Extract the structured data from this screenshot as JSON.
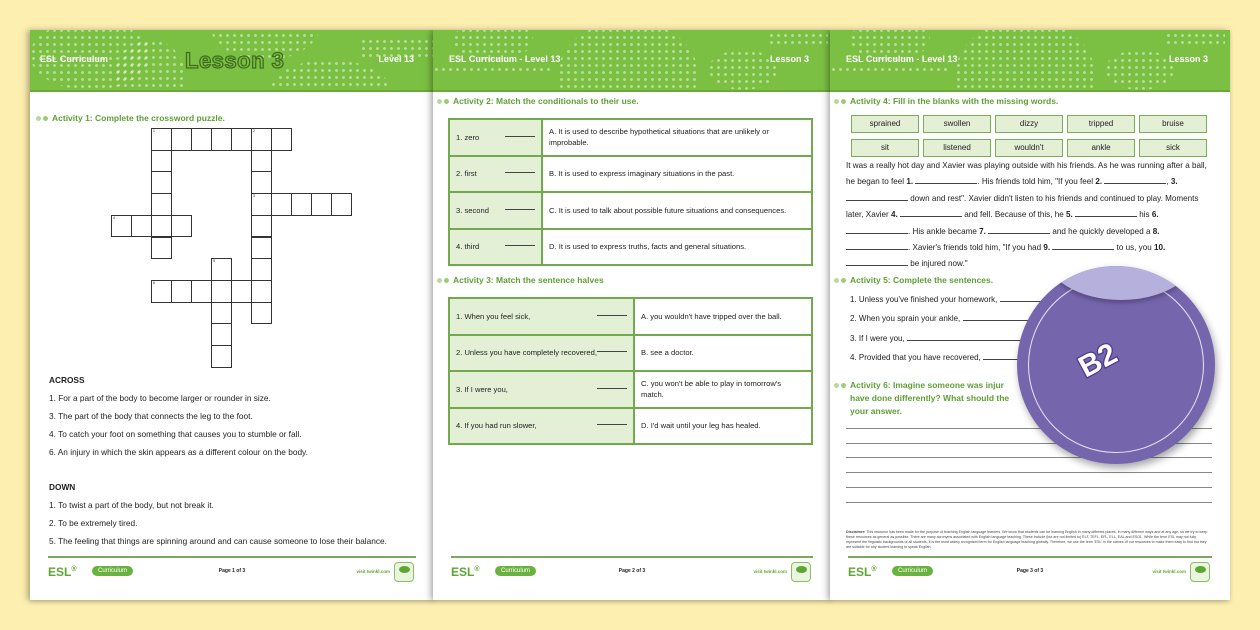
{
  "colors": {
    "background": "#fcefb0",
    "header_green": "#7cc043",
    "activity_green": "#5f9f36",
    "cell_green": "#e3f0d5",
    "sticker_purple": "#7565ad"
  },
  "page1": {
    "header": {
      "left": "ESL Curriculum",
      "title": "Lesson 3",
      "right": "Level 13"
    },
    "activity_title": "Activity 1: Complete the crossword puzzle.",
    "across_heading": "ACROSS",
    "across": [
      "1. For a part of the body to become larger or rounder in size.",
      "3. The part of the body that connects the leg to the foot.",
      "4. To catch your foot on something that causes you to stumble or fall.",
      "6. An injury in which the skin appears as a different colour on the body."
    ],
    "down_heading": "DOWN",
    "down": [
      "1. To twist a part of the body, but not break it.",
      "2. To be extremely tired.",
      "5. The feeling that things are spinning around and can cause someone to lose their balance."
    ],
    "crossword_numbers": [
      "1",
      "2",
      "3",
      "4",
      "5",
      "6"
    ],
    "footer": {
      "brand": "ESL",
      "pill": "Curriculum",
      "page": "Page 1 of 3",
      "site": "visit twinkl.com"
    }
  },
  "page2": {
    "header": {
      "left": "ESL Curriculum - Level 13",
      "right": "Lesson 3"
    },
    "activity2_title": "Activity 2: Match the conditionals to their use.",
    "activity2_rows": [
      {
        "left": "1.  zero",
        "right": "A. It is used to describe hypothetical situations that are unlikely or improbable."
      },
      {
        "left": "2.  first",
        "right": "B. It is used to express imaginary situations in the past."
      },
      {
        "left": "3.  second",
        "right": "C. It is used to talk about possible future situations and consequences."
      },
      {
        "left": "4.  third",
        "right": "D. It is used to express truths, facts and general situations."
      }
    ],
    "activity3_title": "Activity 3: Match the sentence halves",
    "activity3_rows": [
      {
        "left": "1.  When you feel sick,",
        "right": "A. you wouldn't have tripped over the ball."
      },
      {
        "left": "2.  Unless you have completely recovered,",
        "right": "B. see a doctor."
      },
      {
        "left": "3.  If I were you,",
        "right": "C. you won't be able to play in tomorrow's match."
      },
      {
        "left": "4.  If you had run slower,",
        "right": "D. I'd wait until your leg has healed."
      }
    ],
    "footer": {
      "brand": "ESL",
      "pill": "Curriculum",
      "page": "Page 2 of 3",
      "site": "visit twinkl.com"
    }
  },
  "page3": {
    "header": {
      "left": "ESL Curriculum - Level 13",
      "right": "Lesson 3"
    },
    "activity4_title": "Activity 4: Fill in the blanks with the missing words.",
    "word_bank": [
      "sprained",
      "swollen",
      "dizzy",
      "tripped",
      "bruise",
      "sit",
      "listened",
      "wouldn't",
      "ankle",
      "sick"
    ],
    "paragraph": [
      {
        "t": "It was a really hot day and Xavier was playing outside with his friends. As he was running after a ball, he began to feel "
      },
      {
        "n": "1."
      },
      {
        "t": ".  His friends told him, \"If you feel "
      },
      {
        "n": "2."
      },
      {
        "t": ", "
      },
      {
        "n": "3."
      },
      {
        "t": " down and rest\". Xavier didn't listen to his friends and continued to play. Moments later, Xavier "
      },
      {
        "n": "4."
      },
      {
        "t": " and fell. Because of this, he "
      },
      {
        "n": "5."
      },
      {
        "t": " his "
      },
      {
        "n": "6."
      },
      {
        "t": ". His ankle became "
      },
      {
        "n": "7."
      },
      {
        "t": " and he quickly developed a "
      },
      {
        "n": "8."
      },
      {
        "t": ". Xavier's friends told him, \"If you had "
      },
      {
        "n": "9."
      },
      {
        "t": " to us, you "
      },
      {
        "n": "10."
      },
      {
        "t": " be injured now.\""
      }
    ],
    "activity5_title": "Activity 5: Complete the sentences.",
    "sentences": [
      "1.  Unless you've finished your homework,",
      "2.  When you sprain your ankle,",
      "3.  If I were you,",
      "4.  Provided that you have recovered,"
    ],
    "activity6_title": "Activity 6: Imagine someone was injur... have done differently? What should the... your answer.",
    "activity6_lines": [
      "Activity 6: Imagine someone was injur",
      "have done differently? What should the",
      "your answer."
    ],
    "disclaimer_label": "Disclaimer:",
    "disclaimer": "This resource has been made for the purpose of teaching English language learners. We know that students can be learning English in many different places, in many different ways and at any age, so we try to keep these resources as general as possible. There are many acronyms associated with English language teaching. These include (but are not limited to) ELT, TEFL, EFL, ELL, EAL and ESOL. While the term ESL may not fully represent the linguistic backgrounds of all students, it is the most widely recognised term for English language teaching globally. Therefore, we use the term 'ESL' in the names of our resources to make them easy to find but they are suitable for any student learning to speak English.",
    "footer": {
      "brand": "ESL",
      "pill": "Curriculum",
      "page": "Page 3 of 3",
      "site": "visit twinkl.com"
    }
  },
  "sticker": {
    "label": "B2"
  }
}
